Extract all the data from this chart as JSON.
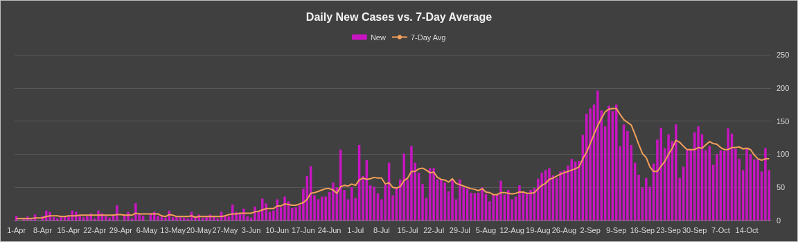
{
  "chart_data": {
    "type": "bar",
    "title": "Daily New Cases vs. 7-Day Average",
    "categories": [
      "1-Apr",
      null,
      null,
      null,
      null,
      null,
      null,
      "8-Apr",
      null,
      null,
      null,
      null,
      null,
      null,
      "15-Apr",
      null,
      null,
      null,
      null,
      null,
      null,
      "22-Apr",
      null,
      null,
      null,
      null,
      null,
      null,
      "29-Apr",
      null,
      null,
      null,
      null,
      null,
      null,
      "6-May",
      null,
      null,
      null,
      null,
      null,
      null,
      "13-May",
      null,
      null,
      null,
      null,
      null,
      null,
      "20-May",
      null,
      null,
      null,
      null,
      null,
      null,
      "27-May",
      null,
      null,
      null,
      null,
      null,
      null,
      "3-Jun",
      null,
      null,
      null,
      null,
      null,
      null,
      "10-Jun",
      null,
      null,
      null,
      null,
      null,
      null,
      "17-Jun",
      null,
      null,
      null,
      null,
      null,
      null,
      "24-Jun",
      null,
      null,
      null,
      null,
      null,
      null,
      "1-Jul",
      null,
      null,
      null,
      null,
      null,
      null,
      "8-Jul",
      null,
      null,
      null,
      null,
      null,
      null,
      "15-Jul",
      null,
      null,
      null,
      null,
      null,
      null,
      "22-Jul",
      null,
      null,
      null,
      null,
      null,
      null,
      "29-Jul",
      null,
      null,
      null,
      null,
      null,
      null,
      "5-Aug",
      null,
      null,
      null,
      null,
      null,
      null,
      "12-Aug",
      null,
      null,
      null,
      null,
      null,
      null,
      "19-Aug",
      null,
      null,
      null,
      null,
      null,
      null,
      "26-Aug",
      null,
      null,
      null,
      null,
      null,
      null,
      "2-Sep",
      null,
      null,
      null,
      null,
      null,
      null,
      "9-Sep",
      null,
      null,
      null,
      null,
      null,
      null,
      "16-Sep",
      null,
      null,
      null,
      null,
      null,
      null,
      "23-Sep",
      null,
      null,
      null,
      null,
      null,
      null,
      "30-Sep",
      null,
      null,
      null,
      null,
      null,
      null,
      "7-Oct",
      null,
      null,
      null,
      null,
      null,
      null,
      "14-Oct",
      null,
      null,
      null,
      null,
      null,
      null
    ],
    "series": [
      {
        "name": "New",
        "color": "#c815c2",
        "values": [
          7,
          0,
          2,
          6,
          3,
          9,
          0,
          7,
          15,
          13,
          5,
          3,
          6,
          6,
          6,
          15,
          13,
          7,
          5,
          7,
          11,
          3,
          15,
          11,
          7,
          4,
          8,
          23,
          0,
          8,
          13,
          3,
          26,
          10,
          7,
          0,
          11,
          13,
          7,
          6,
          4,
          15,
          5,
          6,
          5,
          4,
          3,
          13,
          5,
          9,
          4,
          6,
          9,
          7,
          3,
          13,
          8,
          6,
          24,
          13,
          10,
          18,
          6,
          4,
          21,
          14,
          33,
          26,
          13,
          15,
          32,
          20,
          36,
          29,
          19,
          20,
          23,
          48,
          67,
          82,
          38,
          32,
          36,
          36,
          43,
          57,
          50,
          107,
          46,
          32,
          50,
          34,
          114,
          67,
          91,
          53,
          51,
          41,
          32,
          54,
          87,
          38,
          50,
          62,
          101,
          62,
          112,
          87,
          72,
          55,
          34,
          79,
          79,
          62,
          62,
          57,
          44,
          61,
          32,
          62,
          50,
          48,
          42,
          41,
          42,
          50,
          40,
          29,
          39,
          39,
          60,
          39,
          46,
          32,
          36,
          53,
          43,
          40,
          46,
          49,
          63,
          72,
          76,
          79,
          68,
          64,
          74,
          76,
          83,
          93,
          89,
          90,
          129,
          161,
          169,
          175,
          196,
          166,
          142,
          173,
          165,
          175,
          112,
          145,
          135,
          114,
          87,
          69,
          50,
          64,
          51,
          86,
          122,
          140,
          109,
          130,
          120,
          145,
          64,
          81,
          107,
          107,
          133,
          142,
          130,
          106,
          112,
          84,
          100,
          106,
          105,
          139,
          131,
          108,
          93,
          76,
          108,
          100,
          92,
          92,
          74,
          109,
          76
        ]
      },
      {
        "name": "7-Day Avg",
        "type": "line",
        "color": "#f4a05a",
        "values": [
          3,
          3,
          3,
          3,
          3,
          4,
          4,
          4,
          6,
          7,
          7,
          7,
          6,
          6,
          7,
          7,
          7,
          8,
          8,
          8,
          8,
          8,
          8,
          8,
          8,
          8,
          8,
          9,
          9,
          8,
          8,
          8,
          11,
          10,
          10,
          10,
          10,
          10,
          10,
          7,
          6,
          9,
          8,
          6,
          6,
          6,
          6,
          7,
          5,
          6,
          6,
          6,
          6,
          6,
          6,
          6,
          7,
          9,
          10,
          10,
          11,
          11,
          11,
          11,
          13,
          14,
          16,
          18,
          18,
          18,
          22,
          22,
          25,
          24,
          23,
          23,
          25,
          27,
          32,
          41,
          42,
          44,
          46,
          48,
          48,
          46,
          41,
          51,
          53,
          52,
          55,
          53,
          61,
          64,
          62,
          63,
          65,
          64,
          64,
          55,
          57,
          50,
          49,
          51,
          60,
          64,
          74,
          74,
          78,
          79,
          76,
          72,
          73,
          65,
          62,
          61,
          58,
          63,
          56,
          54,
          52,
          50,
          48,
          47,
          45,
          48,
          43,
          42,
          39,
          39,
          42,
          42,
          41,
          40,
          41,
          43,
          43,
          41,
          41,
          42,
          48,
          53,
          56,
          62,
          64,
          67,
          70,
          72,
          74,
          76,
          78,
          81,
          93,
          103,
          116,
          130,
          143,
          154,
          164,
          168,
          169,
          169,
          160,
          152,
          148,
          144,
          130,
          115,
          101,
          95,
          81,
          74,
          74,
          82,
          89,
          100,
          109,
          121,
          118,
          112,
          107,
          107,
          107,
          110,
          109,
          114,
          119,
          116,
          115,
          110,
          107,
          107,
          110,
          110,
          111,
          108,
          109,
          107,
          99,
          93,
          91,
          93,
          93
        ]
      }
    ],
    "ylim": [
      0,
      250
    ],
    "yticks": [
      0,
      50,
      100,
      150,
      200,
      250
    ],
    "grid": "y",
    "legend": "top",
    "marker": "none"
  }
}
